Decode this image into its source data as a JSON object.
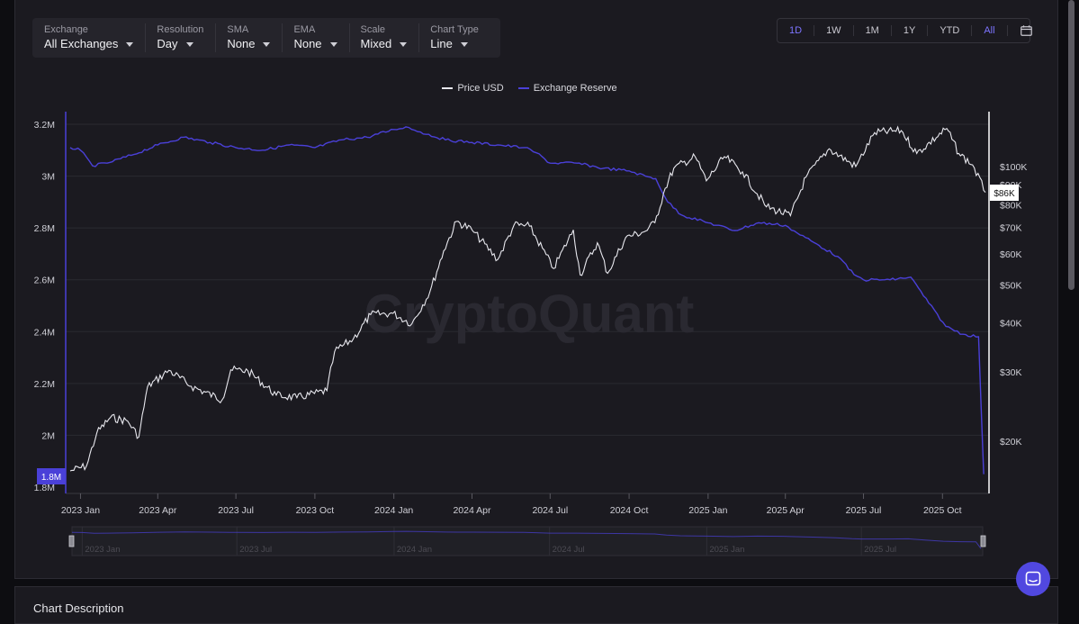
{
  "controls": [
    {
      "label": "Exchange",
      "value": "All Exchanges"
    },
    {
      "label": "Resolution",
      "value": "Day"
    },
    {
      "label": "SMA",
      "value": "None"
    },
    {
      "label": "EMA",
      "value": "None"
    },
    {
      "label": "Scale",
      "value": "Mixed"
    },
    {
      "label": "Chart Type",
      "value": "Line"
    }
  ],
  "ranges": [
    "1D",
    "1W",
    "1M",
    "1Y",
    "YTD",
    "All"
  ],
  "active_ranges": [
    "1D",
    "All"
  ],
  "watermark": "CryptoQuant",
  "description_title": "Chart Description",
  "colors": {
    "price": "#e8e8ee",
    "reserve": "#4a40d8",
    "accent": "#7d74ff"
  },
  "chart_data": {
    "type": "line",
    "x_tick_labels": [
      "2023 Jan",
      "2023 Apr",
      "2023 Jul",
      "2023 Oct",
      "2024 Jan",
      "2024 Apr",
      "2024 Jul",
      "2024 Oct",
      "2025 Jan",
      "2025 Apr",
      "2025 Jul",
      "2025 Oct"
    ],
    "left_axis": {
      "ticks": [
        "3.2M",
        "3M",
        "2.8M",
        "2.6M",
        "2.4M",
        "2.2M",
        "2M",
        "1.8M"
      ],
      "range": [
        1.8,
        3.2
      ],
      "unit": "M"
    },
    "right_axis": {
      "scale": "log",
      "ticks": [
        "$100K",
        "$90K",
        "$80K",
        "$70K",
        "$60K",
        "$50K",
        "$40K",
        "$30K",
        "$20K"
      ]
    },
    "current_reserve_label": "1.8M",
    "current_price_label": "$86K",
    "navigator_labels": [
      "2023 Jan",
      "2023 Jul",
      "2024 Jan",
      "2024 Jul",
      "2025 Jan",
      "2025 Jul"
    ],
    "series": [
      {
        "name": "Price USD",
        "axis": "right",
        "points": [
          [
            "2022-12-20",
            16800
          ],
          [
            "2023-01-08",
            17300
          ],
          [
            "2023-01-20",
            21000
          ],
          [
            "2023-02-05",
            23000
          ],
          [
            "2023-02-25",
            22500
          ],
          [
            "2023-03-10",
            20500
          ],
          [
            "2023-03-20",
            27500
          ],
          [
            "2023-04-14",
            30300
          ],
          [
            "2023-05-10",
            27600
          ],
          [
            "2023-06-15",
            25500
          ],
          [
            "2023-06-25",
            30400
          ],
          [
            "2023-07-15",
            30200
          ],
          [
            "2023-08-17",
            26200
          ],
          [
            "2023-09-10",
            25800
          ],
          [
            "2023-10-15",
            26900
          ],
          [
            "2023-10-24",
            33800
          ],
          [
            "2023-11-15",
            36500
          ],
          [
            "2023-12-05",
            42000
          ],
          [
            "2023-12-31",
            42300
          ],
          [
            "2024-01-22",
            39800
          ],
          [
            "2024-02-12",
            48000
          ],
          [
            "2024-02-28",
            61000
          ],
          [
            "2024-03-14",
            72500
          ],
          [
            "2024-04-01",
            69000
          ],
          [
            "2024-05-01",
            58000
          ],
          [
            "2024-05-20",
            71000
          ],
          [
            "2024-06-07",
            70500
          ],
          [
            "2024-07-05",
            55000
          ],
          [
            "2024-07-28",
            69000
          ],
          [
            "2024-08-05",
            53000
          ],
          [
            "2024-08-25",
            64000
          ],
          [
            "2024-09-06",
            53500
          ],
          [
            "2024-09-27",
            66000
          ],
          [
            "2024-10-20",
            68500
          ],
          [
            "2024-10-31",
            72000
          ],
          [
            "2024-11-12",
            88000
          ],
          [
            "2024-11-22",
            99000
          ],
          [
            "2024-12-17",
            106000
          ],
          [
            "2024-12-30",
            92000
          ],
          [
            "2025-01-20",
            106000
          ],
          [
            "2025-02-10",
            97000
          ],
          [
            "2025-03-10",
            79000
          ],
          [
            "2025-04-07",
            75000
          ],
          [
            "2025-04-25",
            94000
          ],
          [
            "2025-05-22",
            111000
          ],
          [
            "2025-06-22",
            100000
          ],
          [
            "2025-07-14",
            122000
          ],
          [
            "2025-08-14",
            123500
          ],
          [
            "2025-09-01",
            108000
          ],
          [
            "2025-10-06",
            125000
          ],
          [
            "2025-10-20",
            108000
          ],
          [
            "2025-11-05",
            101000
          ],
          [
            "2025-11-20",
            86000
          ]
        ]
      },
      {
        "name": "Exchange Reserve",
        "axis": "left",
        "points": [
          [
            "2022-12-20",
            3.11
          ],
          [
            "2023-01-01",
            3.1
          ],
          [
            "2023-01-15",
            3.04
          ],
          [
            "2023-02-01",
            3.05
          ],
          [
            "2023-03-01",
            3.08
          ],
          [
            "2023-04-01",
            3.12
          ],
          [
            "2023-05-01",
            3.15
          ],
          [
            "2023-06-01",
            3.13
          ],
          [
            "2023-07-01",
            3.11
          ],
          [
            "2023-08-01",
            3.1
          ],
          [
            "2023-09-01",
            3.12
          ],
          [
            "2023-10-01",
            3.11
          ],
          [
            "2023-11-01",
            3.14
          ],
          [
            "2023-12-01",
            3.15
          ],
          [
            "2024-01-01",
            3.18
          ],
          [
            "2024-01-15",
            3.19
          ],
          [
            "2024-02-01",
            3.17
          ],
          [
            "2024-03-01",
            3.14
          ],
          [
            "2024-04-01",
            3.13
          ],
          [
            "2024-05-01",
            3.12
          ],
          [
            "2024-06-01",
            3.11
          ],
          [
            "2024-06-15",
            3.09
          ],
          [
            "2024-07-01",
            3.05
          ],
          [
            "2024-08-01",
            3.05
          ],
          [
            "2024-09-01",
            3.03
          ],
          [
            "2024-10-01",
            3.02
          ],
          [
            "2024-10-20",
            3.0
          ],
          [
            "2024-11-01",
            2.99
          ],
          [
            "2024-11-15",
            2.9
          ],
          [
            "2024-12-01",
            2.85
          ],
          [
            "2025-01-01",
            2.82
          ],
          [
            "2025-02-01",
            2.79
          ],
          [
            "2025-03-01",
            2.82
          ],
          [
            "2025-04-01",
            2.81
          ],
          [
            "2025-04-15",
            2.78
          ],
          [
            "2025-05-01",
            2.75
          ],
          [
            "2025-06-01",
            2.69
          ],
          [
            "2025-06-20",
            2.62
          ],
          [
            "2025-07-01",
            2.6
          ],
          [
            "2025-08-01",
            2.6
          ],
          [
            "2025-08-25",
            2.61
          ],
          [
            "2025-09-15",
            2.51
          ],
          [
            "2025-10-05",
            2.42
          ],
          [
            "2025-10-25",
            2.39
          ],
          [
            "2025-11-12",
            2.38
          ],
          [
            "2025-11-18",
            1.85
          ]
        ]
      }
    ]
  }
}
